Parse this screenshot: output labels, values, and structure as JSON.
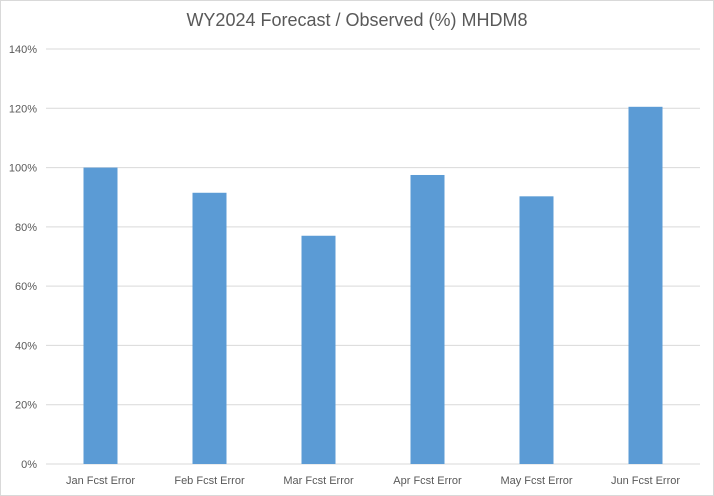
{
  "chart_data": {
    "type": "bar",
    "title": "WY2024 Forecast / Observed (%) MHDM8",
    "categories": [
      "Jan Fcst Error",
      "Feb Fcst Error",
      "Mar Fcst Error",
      "Apr Fcst Error",
      "May Fcst Error",
      "Jun Fcst Error"
    ],
    "values": [
      100,
      91.5,
      77,
      97.5,
      90.3,
      120.5
    ],
    "ylim": [
      0,
      140
    ],
    "ytick_step": 20,
    "ytick_suffix": "%",
    "xlabel": "",
    "ylabel": "",
    "grid": true,
    "legend": "none",
    "colors": {
      "bar": "#5b9bd5",
      "grid": "#d9d9d9",
      "text": "#595959"
    }
  }
}
